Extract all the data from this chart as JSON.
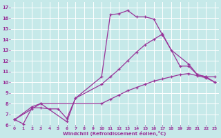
{
  "xlabel": "Windchill (Refroidissement éolien,°C)",
  "bg_color": "#c6e9e9",
  "line_color": "#993399",
  "grid_color": "#ffffff",
  "xlim": [
    -0.5,
    23.5
  ],
  "ylim": [
    6,
    17.5
  ],
  "xticks": [
    0,
    1,
    2,
    3,
    4,
    5,
    6,
    7,
    8,
    9,
    10,
    11,
    12,
    13,
    14,
    15,
    16,
    17,
    18,
    19,
    20,
    21,
    22,
    23
  ],
  "yticks": [
    6,
    7,
    8,
    9,
    10,
    11,
    12,
    13,
    14,
    15,
    16,
    17
  ],
  "line1_x": [
    0,
    1,
    2,
    3,
    4,
    5,
    6,
    7,
    10,
    11,
    12,
    13,
    14,
    15,
    16,
    17,
    18,
    20,
    21,
    22,
    23
  ],
  "line1_y": [
    6.5,
    6.1,
    7.6,
    7.6,
    7.5,
    7.5,
    6.6,
    8.5,
    10.5,
    16.3,
    16.4,
    16.7,
    16.1,
    16.1,
    15.9,
    14.4,
    13.0,
    11.7,
    10.7,
    10.5,
    10.0
  ],
  "line2_x": [
    0,
    2,
    3,
    6,
    7,
    10,
    11,
    12,
    13,
    14,
    15,
    16,
    17,
    19,
    20,
    21,
    22,
    23
  ],
  "line2_y": [
    6.5,
    7.7,
    8.0,
    6.3,
    8.5,
    9.8,
    10.5,
    11.2,
    12.0,
    12.8,
    13.5,
    14.0,
    14.5,
    11.5,
    11.5,
    10.7,
    10.5,
    10.5
  ],
  "line3_x": [
    0,
    2,
    3,
    10,
    11,
    12,
    13,
    14,
    15,
    16,
    17,
    18,
    19,
    20,
    21,
    22,
    23
  ],
  "line3_y": [
    6.5,
    7.5,
    8.0,
    8.0,
    8.4,
    8.8,
    9.2,
    9.5,
    9.8,
    10.1,
    10.3,
    10.5,
    10.7,
    10.8,
    10.6,
    10.4,
    10.0
  ]
}
